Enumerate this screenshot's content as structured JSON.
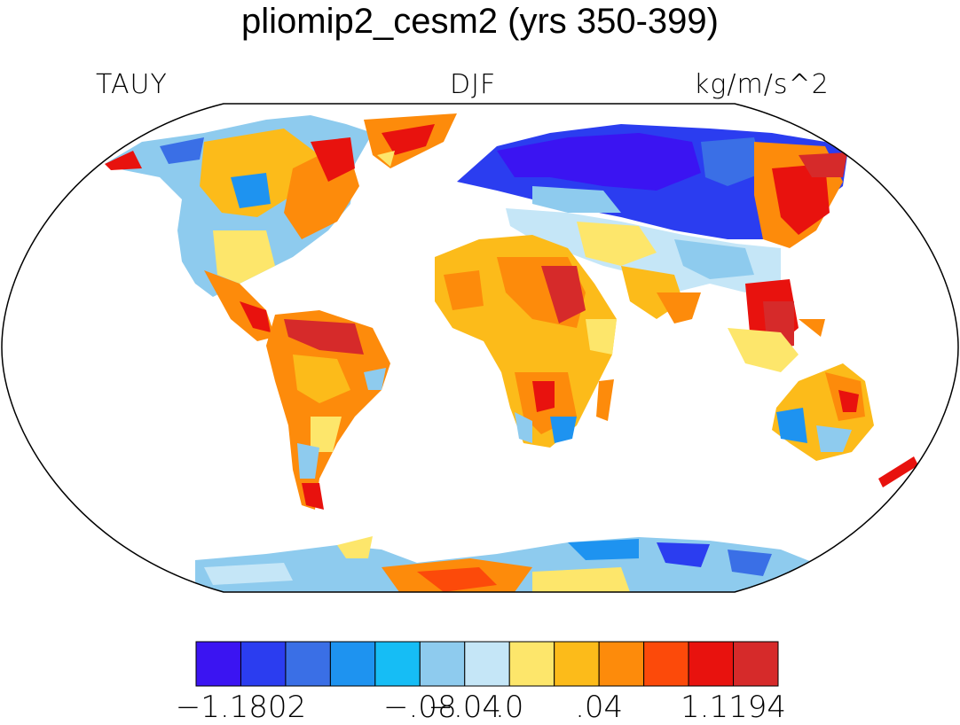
{
  "title": "pliomip2_cesm2 (yrs 350-399)",
  "left_label": "TAUY",
  "center_label": "DJF",
  "right_label": "kg/m/s^2",
  "colorbar": {
    "colors": [
      "#3b14f2",
      "#2b3df0",
      "#3a6fe6",
      "#1e93f0",
      "#16bdf5",
      "#8ecbee",
      "#c5e6f7",
      "#fde66b",
      "#fcbb1a",
      "#fd8b0b",
      "#fc4a0a",
      "#e8120e",
      "#d62a2a"
    ],
    "labels": [
      "−1.1802",
      "−.08",
      "−.04",
      ".0",
      ".04",
      "1.1194"
    ]
  },
  "palette": {
    "strong_neg": "#3b14f2",
    "neg": "#2b3df0",
    "mid_neg": "#3a6fe6",
    "light_neg": "#8ecbee",
    "near_zero_neg": "#c5e6f7",
    "near_zero_pos": "#fde66b",
    "pos": "#fcbb1a",
    "mid_pos": "#fd8b0b",
    "strong_pos": "#e8120e",
    "extreme_pos": "#d62a2a"
  }
}
